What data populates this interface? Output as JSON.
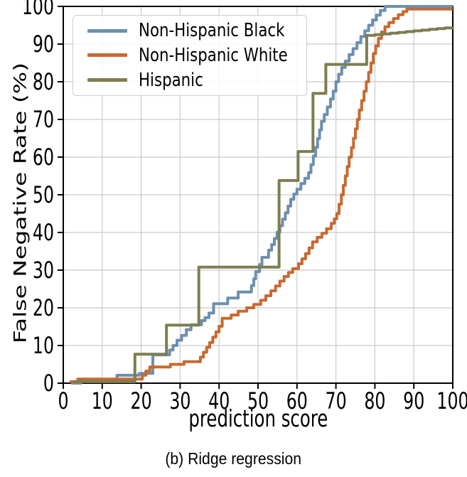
{
  "figure": {
    "caption": "(b) Ridge regression"
  },
  "chart_data": {
    "type": "line",
    "subtype": "step-cdf",
    "title": "",
    "xlabel": "prediction score",
    "ylabel": "False Negative Rate (%)",
    "xlim": [
      0,
      100
    ],
    "ylim": [
      0,
      100
    ],
    "xticks": [
      0,
      10,
      20,
      30,
      40,
      50,
      60,
      70,
      80,
      90,
      100
    ],
    "yticks": [
      0,
      10,
      20,
      30,
      40,
      50,
      60,
      70,
      80,
      90,
      100
    ],
    "grid": true,
    "grid_color": "#cbcbcb",
    "axis_color": "#000000",
    "legend_position": "upper-left",
    "series": [
      {
        "name": "Non-Hispanic Black",
        "color": "#6d8fae",
        "points": [
          [
            2,
            0
          ],
          [
            4.5,
            0.9
          ],
          [
            13.8,
            2.1
          ],
          [
            19.5,
            2.6
          ],
          [
            23,
            7.5
          ],
          [
            27.3,
            8.8
          ],
          [
            28.2,
            10
          ],
          [
            29.2,
            11.4
          ],
          [
            30.4,
            12.7
          ],
          [
            31.6,
            14.2
          ],
          [
            32.8,
            15.5
          ],
          [
            35.5,
            16.6
          ],
          [
            36.4,
            17.4
          ],
          [
            37.4,
            18.6
          ],
          [
            38.6,
            21.1
          ],
          [
            42.2,
            22.6
          ],
          [
            44.9,
            24.2
          ],
          [
            48.3,
            25.9
          ],
          [
            48.9,
            27.7
          ],
          [
            49.4,
            29.6
          ],
          [
            50.4,
            31.5
          ],
          [
            51,
            33.4
          ],
          [
            52.7,
            35.3
          ],
          [
            53.5,
            36.8
          ],
          [
            54.2,
            38.4
          ],
          [
            54.9,
            40.1
          ],
          [
            55.6,
            41.8
          ],
          [
            56.3,
            43.5
          ],
          [
            57,
            45.2
          ],
          [
            57.7,
            47
          ],
          [
            58.4,
            48.8
          ],
          [
            59.2,
            50.2
          ],
          [
            60,
            51.5
          ],
          [
            61,
            53
          ],
          [
            62,
            54.4
          ],
          [
            63,
            55.9
          ],
          [
            63.6,
            58
          ],
          [
            64.2,
            60.3
          ],
          [
            64.8,
            62.6
          ],
          [
            65.3,
            64.9
          ],
          [
            65.8,
            67.2
          ],
          [
            66.3,
            69.5
          ],
          [
            67,
            71.3
          ],
          [
            67.8,
            73.3
          ],
          [
            68.6,
            75.4
          ],
          [
            69.3,
            77.5
          ],
          [
            70,
            80
          ],
          [
            70.7,
            82
          ],
          [
            71.5,
            83.8
          ],
          [
            72.4,
            85.5
          ],
          [
            73.4,
            87.2
          ],
          [
            74.4,
            88.8
          ],
          [
            75.4,
            90.4
          ],
          [
            76.4,
            92
          ],
          [
            77.4,
            93.5
          ],
          [
            78.4,
            95
          ],
          [
            79.4,
            96.4
          ],
          [
            80.4,
            97.7
          ],
          [
            81.4,
            98.9
          ],
          [
            82.6,
            100
          ],
          [
            100,
            100
          ]
        ]
      },
      {
        "name": "Non-Hispanic White",
        "color": "#c66a32",
        "points": [
          [
            1.6,
            0.4
          ],
          [
            3.7,
            1.1
          ],
          [
            20.3,
            2.1
          ],
          [
            21.2,
            3.2
          ],
          [
            22.2,
            4.3
          ],
          [
            27.5,
            5
          ],
          [
            31,
            5.7
          ],
          [
            35.2,
            6.9
          ],
          [
            36,
            8.2
          ],
          [
            36.8,
            9.5
          ],
          [
            37.6,
            10.8
          ],
          [
            38.4,
            12.2
          ],
          [
            39.2,
            13.6
          ],
          [
            40,
            15.1
          ],
          [
            40.8,
            17.2
          ],
          [
            43.1,
            18.1
          ],
          [
            44.9,
            19.1
          ],
          [
            47.1,
            20
          ],
          [
            48.9,
            20.9
          ],
          [
            50.7,
            22
          ],
          [
            52,
            23.2
          ],
          [
            53.3,
            24.5
          ],
          [
            54.5,
            25.8
          ],
          [
            55.6,
            27.1
          ],
          [
            56.7,
            28.3
          ],
          [
            57.8,
            29.4
          ],
          [
            58.9,
            30.4
          ],
          [
            60.4,
            31.7
          ],
          [
            61.3,
            33
          ],
          [
            62.2,
            34.4
          ],
          [
            63.1,
            35.9
          ],
          [
            64,
            37.5
          ],
          [
            65.2,
            38.7
          ],
          [
            66.4,
            39.8
          ],
          [
            67.6,
            41
          ],
          [
            68.8,
            42.4
          ],
          [
            69.6,
            43.6
          ],
          [
            70.2,
            45
          ],
          [
            70.8,
            47.5
          ],
          [
            71.4,
            50
          ],
          [
            71.9,
            52.5
          ],
          [
            72.4,
            55
          ],
          [
            72.9,
            57.5
          ],
          [
            73.4,
            60
          ],
          [
            74,
            62.5
          ],
          [
            74.5,
            65
          ],
          [
            75,
            67.5
          ],
          [
            75.5,
            70
          ],
          [
            76,
            72.5
          ],
          [
            76.6,
            75
          ],
          [
            77.2,
            77.5
          ],
          [
            77.8,
            80
          ],
          [
            78.4,
            82.5
          ],
          [
            79,
            85
          ],
          [
            79.6,
            87.5
          ],
          [
            80.2,
            89.5
          ],
          [
            80.9,
            91.5
          ],
          [
            81.7,
            93.2
          ],
          [
            82.6,
            94.6
          ],
          [
            83.6,
            95.7
          ],
          [
            84.8,
            96.8
          ],
          [
            86,
            97.8
          ],
          [
            87.2,
            98.6
          ],
          [
            88.2,
            99.3
          ],
          [
            100,
            99.3
          ]
        ]
      },
      {
        "name": "Hispanic",
        "color": "#7d7d52",
        "points": [
          [
            2.5,
            0.4
          ],
          [
            18.4,
            7.7
          ],
          [
            26.5,
            15.4
          ],
          [
            34.8,
            30.8
          ],
          [
            55.4,
            53.8
          ],
          [
            60.3,
            61.5
          ],
          [
            64.1,
            76.9
          ],
          [
            67.4,
            84.6
          ],
          [
            77.9,
            92.3
          ],
          [
            80,
            92.5
          ],
          [
            82,
            92.7
          ],
          [
            84,
            92.9
          ],
          [
            86,
            93.1
          ],
          [
            88,
            93.3
          ],
          [
            90,
            93.5
          ],
          [
            92,
            93.7
          ],
          [
            94,
            93.9
          ],
          [
            96,
            94.1
          ],
          [
            98,
            94.3
          ],
          [
            100,
            94.5
          ]
        ]
      }
    ]
  }
}
